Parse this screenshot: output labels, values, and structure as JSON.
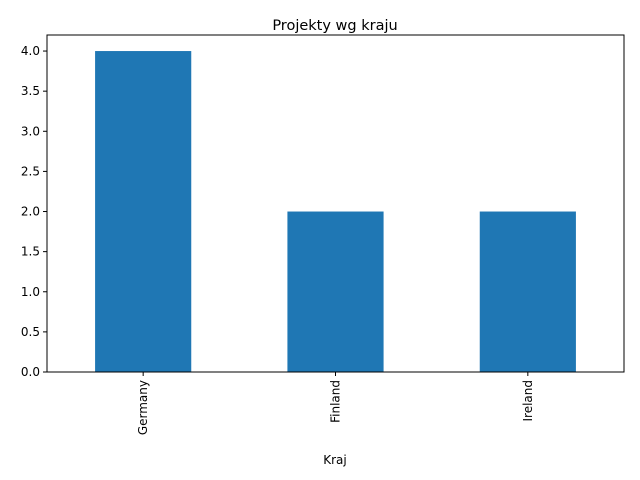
{
  "chart_data": {
    "type": "bar",
    "title": "Projekty wg kraju",
    "xlabel": "Kraj",
    "ylabel": "",
    "categories": [
      "Germany",
      "Finland",
      "Ireland"
    ],
    "values": [
      4,
      2,
      2
    ],
    "ylim": [
      0,
      4.2
    ],
    "yticks": [
      "0.0",
      "0.5",
      "1.0",
      "1.5",
      "2.0",
      "2.5",
      "3.0",
      "3.5",
      "4.0"
    ],
    "grid": false,
    "legend": "none",
    "bar_color": "#1f77b4",
    "x_tick_rotation": "vertical"
  }
}
